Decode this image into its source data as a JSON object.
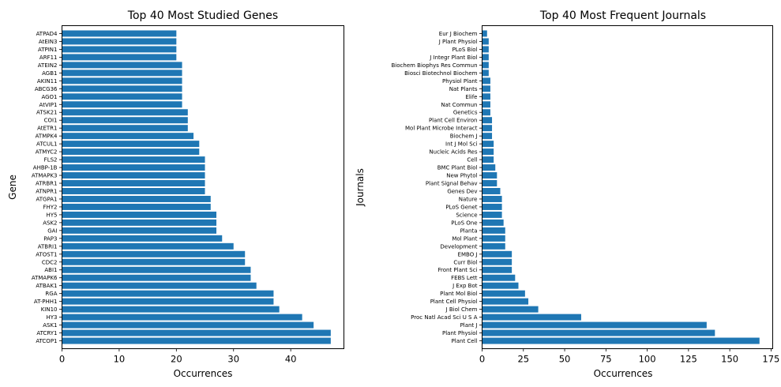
{
  "colors": {
    "bar": "#1f77b4"
  },
  "chart_data": [
    {
      "type": "bar",
      "orientation": "horizontal",
      "title": "Top 40 Most Studied Genes",
      "xlabel": "Occurrences",
      "ylabel": "Gene",
      "xlim": [
        0,
        49.3
      ],
      "xticks": [
        0,
        10,
        20,
        30,
        40
      ],
      "categories": [
        "ATCOP1",
        "ATCRY1",
        "ASK1",
        "HY3",
        "KIN10",
        "AT-PHH1",
        "RGA",
        "ATBAK1",
        "ATMAPK6",
        "ABI1",
        "CDC2",
        "ATOST1",
        "ATBRI1",
        "PAP3",
        "GAI",
        "ASK2",
        "HY5",
        "FHY2",
        "ATGPA1",
        "ATNPR1",
        "ATRBR1",
        "ATMAPK3",
        "AHBP-1B",
        "FLS2",
        "ATMYC2",
        "ATCUL1",
        "ATMPK4",
        "AtETR1",
        "COI1",
        "ATSK21",
        "AtVIP1",
        "AGO1",
        "ABCG36",
        "AKIN11",
        "AGB1",
        "ATEIN2",
        "ARF11",
        "ATPIN1",
        "AtEIN3",
        "ATPAD4"
      ],
      "values": [
        47,
        47,
        44,
        42,
        38,
        37,
        37,
        34,
        33,
        33,
        32,
        32,
        30,
        28,
        27,
        27,
        27,
        26,
        26,
        25,
        25,
        25,
        25,
        25,
        24,
        24,
        23,
        22,
        22,
        22,
        21,
        21,
        21,
        21,
        21,
        21,
        20,
        20,
        20,
        20
      ]
    },
    {
      "type": "bar",
      "orientation": "horizontal",
      "title": "Top 40 Most Frequent Journals",
      "xlabel": "Occurrences",
      "ylabel": "Journals",
      "xlim": [
        0,
        176
      ],
      "xticks": [
        0,
        25,
        50,
        75,
        100,
        125,
        150,
        175
      ],
      "categories": [
        "Plant Cell",
        "Plant Physiol",
        "Plant J",
        "Proc Natl Acad Sci U S A",
        "J Biol Chem",
        "Plant Cell Physiol",
        "Plant Mol Biol",
        "J Exp Bot",
        "FEBS Lett",
        "Front Plant Sci",
        "Curr Biol",
        "EMBO J",
        "Development",
        "Mol Plant",
        "Planta",
        "PLoS One",
        "Science",
        "PLoS Genet",
        "Nature",
        "Genes Dev",
        "Plant Signal Behav",
        "New Phytol",
        "BMC Plant Biol",
        "Cell",
        "Nucleic Acids Res",
        "Int J Mol Sci",
        "Biochem J",
        "Mol Plant Microbe Interact",
        "Plant Cell Environ",
        "Genetics",
        "Nat Commun",
        "Elife",
        "Nat Plants",
        "Physiol Plant",
        "Biosci Biotechnol Biochem",
        "Biochem Biophys Res Commun",
        "J Integr Plant Biol",
        "PLoS Biol",
        "J Plant Physiol",
        "Eur J Biochem"
      ],
      "values": [
        168,
        141,
        136,
        60,
        34,
        28,
        26,
        22,
        20,
        18,
        18,
        18,
        14,
        14,
        14,
        13,
        12,
        12,
        12,
        11,
        9,
        9,
        8,
        7,
        7,
        7,
        6,
        6,
        6,
        5,
        5,
        5,
        5,
        5,
        4,
        4,
        4,
        4,
        4,
        3
      ]
    }
  ]
}
